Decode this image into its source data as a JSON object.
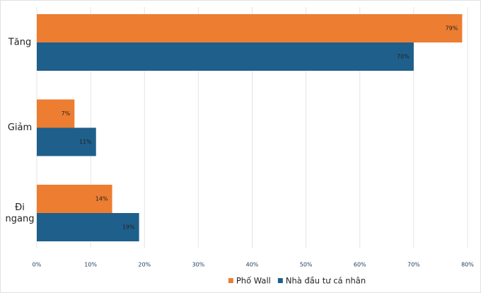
{
  "chart_data": {
    "type": "bar",
    "orientation": "horizontal",
    "categories": [
      "Tăng",
      "Giảm",
      "Đi ngang"
    ],
    "series": [
      {
        "name": "Phố Wall",
        "color": "#ed7d31",
        "values": [
          79,
          7,
          14
        ],
        "value_labels": [
          "79%",
          "7%",
          "14%"
        ]
      },
      {
        "name": "Nhà đầu tư cá nhân",
        "color": "#1f5f8b",
        "values": [
          70,
          11,
          19
        ],
        "value_labels": [
          "70%",
          "11%",
          "19%"
        ]
      }
    ],
    "xlim": [
      0,
      80
    ],
    "xticks": [
      {
        "value": 0,
        "label": "0%"
      },
      {
        "value": 10,
        "label": "10%"
      },
      {
        "value": 20,
        "label": "20%"
      },
      {
        "value": 30,
        "label": "30%"
      },
      {
        "value": 40,
        "label": "40%"
      },
      {
        "value": 50,
        "label": "50%"
      },
      {
        "value": 60,
        "label": "60%"
      },
      {
        "value": 70,
        "label": "70%"
      },
      {
        "value": 80,
        "label": "80%"
      }
    ],
    "grid": true,
    "legend": "bottom"
  }
}
